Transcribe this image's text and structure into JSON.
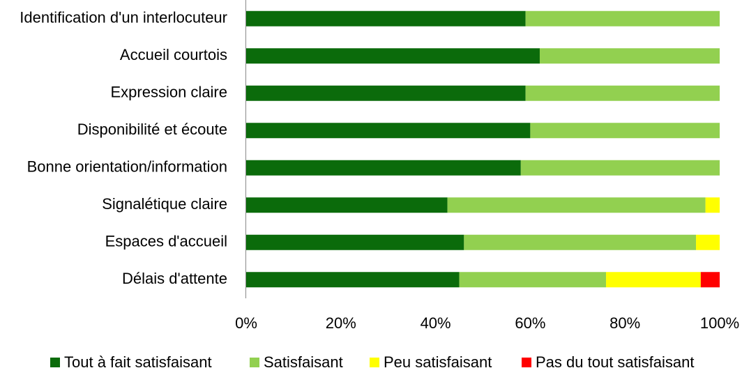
{
  "chart_data": {
    "type": "stacked-bar-horizontal",
    "categories": [
      "Identification d'un interlocuteur",
      "Accueil courtois",
      "Expression claire",
      "Disponibilité et écoute",
      "Bonne orientation/information",
      "Signalétique claire",
      "Espaces d'accueil",
      "Délais d'attente"
    ],
    "series": [
      {
        "name": "Tout à fait satisfaisant",
        "color": "#0b6b0b",
        "values": [
          59,
          62,
          59,
          60,
          58,
          42.5,
          46,
          45
        ]
      },
      {
        "name": "Satisfaisant",
        "color": "#92d050",
        "values": [
          41,
          38,
          41,
          40,
          42,
          54.5,
          49,
          31
        ]
      },
      {
        "name": "Peu satisfaisant",
        "color": "#ffff00",
        "values": [
          0,
          0,
          0,
          0,
          0,
          3,
          5,
          20
        ]
      },
      {
        "name": "Pas du tout satisfaisant",
        "color": "#ff0000",
        "values": [
          0,
          0,
          0,
          0,
          0,
          0,
          0,
          4
        ]
      }
    ],
    "xlim": [
      0,
      100
    ],
    "xticks": [
      {
        "value": 0,
        "label": "0%"
      },
      {
        "value": 20,
        "label": "20%"
      },
      {
        "value": 40,
        "label": "40%"
      },
      {
        "value": 60,
        "label": "60%"
      },
      {
        "value": 80,
        "label": "80%"
      },
      {
        "value": 100,
        "label": "100%"
      }
    ],
    "legend": "bottom"
  }
}
